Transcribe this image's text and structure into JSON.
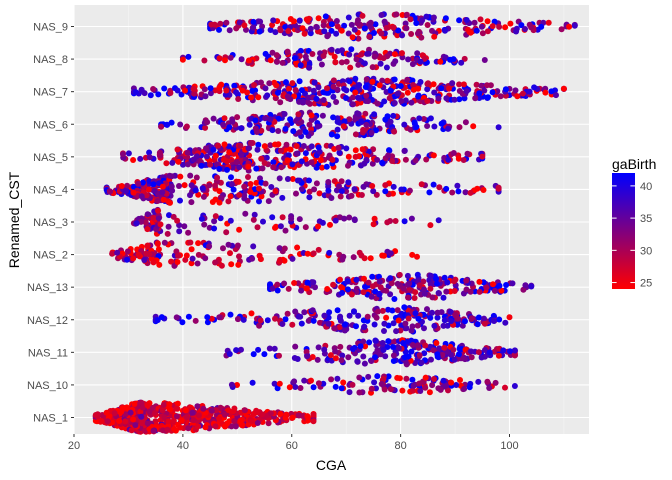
{
  "chart_data": {
    "type": "scatter",
    "subtype": "beeswarm",
    "xlabel": "CGA",
    "ylabel": "Renamed_CST",
    "xlim": [
      20,
      115
    ],
    "xticks": [
      20,
      40,
      60,
      80,
      100
    ],
    "categories": [
      "NAS_1",
      "NAS_10",
      "NAS_11",
      "NAS_12",
      "NAS_13",
      "NAS_2",
      "NAS_3",
      "NAS_4",
      "NAS_5",
      "NAS_6",
      "NAS_7",
      "NAS_8",
      "NAS_9"
    ],
    "legend": {
      "title": "gaBirth",
      "position": "right",
      "ticks": [
        25,
        30,
        35,
        40
      ],
      "range": [
        24,
        42
      ],
      "color_low": "#ff0000",
      "color_high": "#0000ff"
    },
    "grid": true,
    "panel_background": "#ebebeb",
    "series": [
      {
        "category": "NAS_1",
        "cga_range": [
          24,
          64
        ],
        "peak_cga": 33,
        "n": 700,
        "max_width": 0.46,
        "ga_mean": 27,
        "ga_spread": 4
      },
      {
        "category": "NAS_10",
        "cga_range": [
          49,
          101
        ],
        "peak_cga": 80,
        "n": 110,
        "max_width": 0.28,
        "ga_mean": 34,
        "ga_spread": 7
      },
      {
        "category": "NAS_11",
        "cga_range": [
          48,
          101
        ],
        "peak_cga": 80,
        "n": 230,
        "max_width": 0.38,
        "ga_mean": 36,
        "ga_spread": 6
      },
      {
        "category": "NAS_12",
        "cga_range": [
          35,
          100
        ],
        "peak_cga": 80,
        "n": 220,
        "max_width": 0.38,
        "ga_mean": 37,
        "ga_spread": 6
      },
      {
        "category": "NAS_13",
        "cga_range": [
          56,
          104
        ],
        "peak_cga": 82,
        "n": 210,
        "max_width": 0.38,
        "ga_mean": 34,
        "ga_spread": 7
      },
      {
        "category": "NAS_2",
        "cga_range": [
          27,
          83
        ],
        "peak_cga": 36,
        "n": 150,
        "max_width": 0.38,
        "ga_mean": 29,
        "ga_spread": 6
      },
      {
        "category": "NAS_3",
        "cga_range": [
          31,
          87
        ],
        "peak_cga": 36,
        "n": 110,
        "max_width": 0.38,
        "ga_mean": 32,
        "ga_spread": 5
      },
      {
        "category": "NAS_4",
        "cga_range": [
          26,
          98
        ],
        "peak_cga": 38,
        "n": 330,
        "max_width": 0.42,
        "ga_mean": 33,
        "ga_spread": 7
      },
      {
        "category": "NAS_5",
        "cga_range": [
          29,
          95
        ],
        "peak_cga": 52,
        "n": 330,
        "max_width": 0.42,
        "ga_mean": 32,
        "ga_spread": 7
      },
      {
        "category": "NAS_6",
        "cga_range": [
          36,
          98
        ],
        "peak_cga": 65,
        "n": 200,
        "max_width": 0.38,
        "ga_mean": 36,
        "ga_spread": 6
      },
      {
        "category": "NAS_7",
        "cga_range": [
          31,
          110
        ],
        "peak_cga": 72,
        "n": 390,
        "max_width": 0.42,
        "ga_mean": 35,
        "ga_spread": 7
      },
      {
        "category": "NAS_8",
        "cga_range": [
          40,
          98
        ],
        "peak_cga": 70,
        "n": 150,
        "max_width": 0.3,
        "ga_mean": 33,
        "ga_spread": 7
      },
      {
        "category": "NAS_9",
        "cga_range": [
          45,
          112
        ],
        "peak_cga": 75,
        "n": 230,
        "max_width": 0.38,
        "ga_mean": 33,
        "ga_spread": 7
      }
    ]
  }
}
